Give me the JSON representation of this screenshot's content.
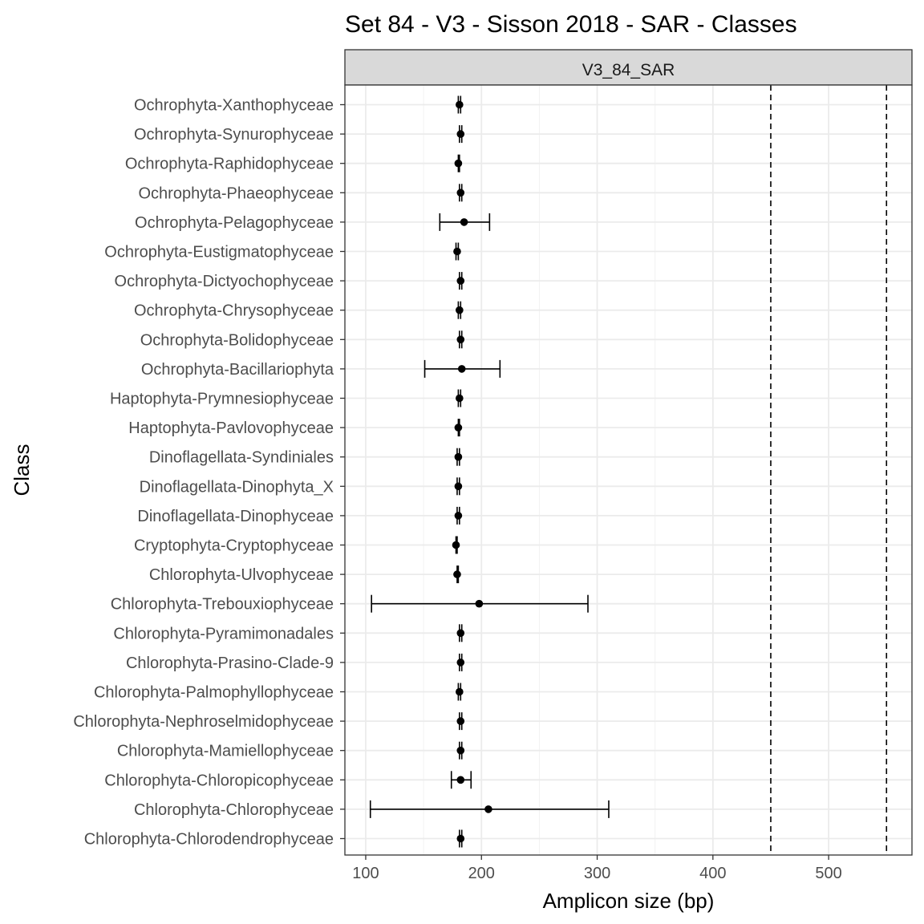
{
  "chart_data": {
    "type": "scatter",
    "title": "Set 84 - V3 - Sisson 2018 - SAR - Classes",
    "facet_label": "V3_84_SAR",
    "xlabel": "Amplicon size (bp)",
    "ylabel": "Class",
    "xlim": [
      82,
      572
    ],
    "x_ticks": [
      100,
      200,
      300,
      400,
      500
    ],
    "reference_lines": [
      450,
      550
    ],
    "grid": true,
    "categories": [
      "Ochrophyta-Xanthophyceae",
      "Ochrophyta-Synurophyceae",
      "Ochrophyta-Raphidophyceae",
      "Ochrophyta-Phaeophyceae",
      "Ochrophyta-Pelagophyceae",
      "Ochrophyta-Eustigmatophyceae",
      "Ochrophyta-Dictyochophyceae",
      "Ochrophyta-Chrysophyceae",
      "Ochrophyta-Bolidophyceae",
      "Ochrophyta-Bacillariophyta",
      "Haptophyta-Prymnesiophyceae",
      "Haptophyta-Pavlovophyceae",
      "Dinoflagellata-Syndiniales",
      "Dinoflagellata-Dinophyta_X",
      "Dinoflagellata-Dinophyceae",
      "Cryptophyta-Cryptophyceae",
      "Chlorophyta-Ulvophyceae",
      "Chlorophyta-Trebouxiophyceae",
      "Chlorophyta-Pyramimonadales",
      "Chlorophyta-Prasino-Clade-9",
      "Chlorophyta-Palmophyllophyceae",
      "Chlorophyta-Nephroselmidophyceae",
      "Chlorophyta-Mamiellophyceae",
      "Chlorophyta-Chloropicophyceae",
      "Chlorophyta-Chlorophyceae",
      "Chlorophyta-Chlorodendrophyceae"
    ],
    "series": [
      {
        "values": [
          181,
          182,
          180,
          182,
          185,
          179,
          182,
          181,
          182,
          183,
          181,
          180,
          180,
          180,
          180,
          178,
          179,
          198,
          182,
          182,
          181,
          182,
          182,
          182,
          206,
          182
        ],
        "lower": [
          180,
          181,
          180,
          181,
          164,
          178,
          181,
          180,
          181,
          151,
          180,
          180,
          179,
          179,
          179,
          178,
          179,
          105,
          181,
          181,
          180,
          181,
          181,
          174,
          104,
          181
        ],
        "upper": [
          182,
          183,
          181,
          183,
          207,
          180,
          183,
          182,
          183,
          216,
          182,
          181,
          181,
          181,
          181,
          179,
          180,
          292,
          183,
          183,
          182,
          183,
          183,
          191,
          310,
          183
        ]
      }
    ]
  }
}
